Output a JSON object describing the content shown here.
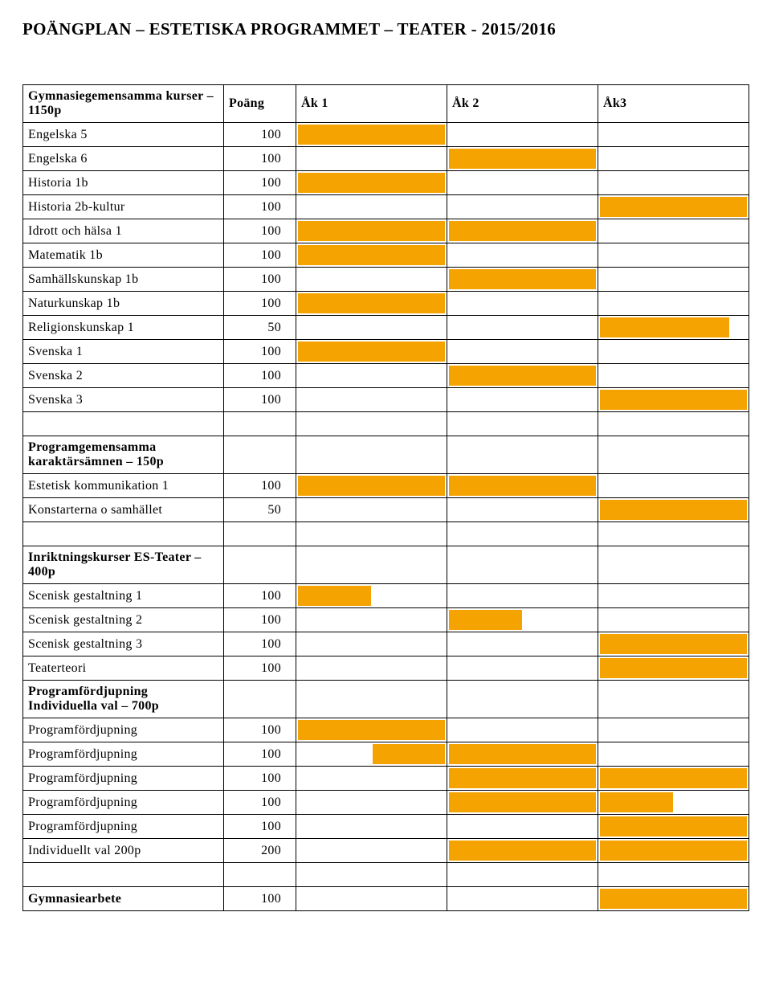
{
  "title": "POÄNGPLAN – ESTETISKA PROGRAMMET – TEATER - 2015/2016",
  "colors": {
    "fill": "#f5a300",
    "border": "#000000",
    "bg": "#ffffff"
  },
  "headers": {
    "section1": "Gymnasiegemensamma kurser – 1150p",
    "points": "Poäng",
    "y1": "Åk 1",
    "y2": "Åk 2",
    "y3": "Åk3",
    "section2": "Programgemensamma karaktärsämnen – 150p",
    "section3": "Inriktningskurser ES-Teater – 400p",
    "section4": "Programfördjupning Individuella val – 700p",
    "section5": "Gymnasiearbete"
  },
  "rows": [
    {
      "label": "Engelska 5",
      "pts": "100",
      "c": [
        "full",
        "",
        ""
      ]
    },
    {
      "label": "Engelska 6",
      "pts": "100",
      "c": [
        "",
        "full",
        ""
      ]
    },
    {
      "label": "Historia 1b",
      "pts": "100",
      "c": [
        "full",
        "",
        ""
      ]
    },
    {
      "label": "Historia 2b-kultur",
      "pts": "100",
      "c": [
        "",
        "",
        "full"
      ]
    },
    {
      "label": "Idrott och hälsa 1",
      "pts": "100",
      "c": [
        "full",
        "full",
        ""
      ]
    },
    {
      "label": "Matematik 1b",
      "pts": "100",
      "c": [
        "full",
        "",
        ""
      ]
    },
    {
      "label": "Samhällskunskap 1b",
      "pts": "100",
      "c": [
        "",
        "full",
        ""
      ]
    },
    {
      "label": "Naturkunskap 1b",
      "pts": "100",
      "c": [
        "full",
        "",
        ""
      ]
    },
    {
      "label": "Religionskunskap 1",
      "pts": "50",
      "c": [
        "",
        "",
        "narrow"
      ]
    },
    {
      "label": "Svenska 1",
      "pts": "100",
      "c": [
        "full",
        "",
        ""
      ]
    },
    {
      "label": "Svenska 2",
      "pts": "100",
      "c": [
        "",
        "full",
        ""
      ]
    },
    {
      "label": "Svenska 3",
      "pts": "100",
      "c": [
        "",
        "",
        "full"
      ]
    }
  ],
  "rows2": [
    {
      "label": "Estetisk kommunikation 1",
      "pts": "100",
      "c": [
        "full",
        "full",
        ""
      ]
    },
    {
      "label": "Konstarterna o samhället",
      "pts": "50",
      "c": [
        "",
        "",
        "full"
      ]
    }
  ],
  "rows3": [
    {
      "label": "Scenisk gestaltning 1",
      "pts": "100",
      "c": [
        "half-l",
        "",
        ""
      ]
    },
    {
      "label": "Scenisk gestaltning 2",
      "pts": "100",
      "c": [
        "",
        "half-l",
        ""
      ]
    },
    {
      "label": "Scenisk gestaltning 3",
      "pts": "100",
      "c": [
        "",
        "",
        "full"
      ]
    },
    {
      "label": "Teaterteori",
      "pts": "100",
      "c": [
        "",
        "",
        "full"
      ]
    }
  ],
  "rows4": [
    {
      "label": "Programfördjupning",
      "pts": "100",
      "c": [
        "full",
        "",
        ""
      ]
    },
    {
      "label": "Programfördjupning",
      "pts": "100",
      "c": [
        "half-r",
        "full",
        ""
      ]
    },
    {
      "label": "Programfördjupning",
      "pts": "100",
      "c": [
        "",
        "full",
        "full"
      ]
    },
    {
      "label": "Programfördjupning",
      "pts": "100",
      "c": [
        "",
        "full",
        "half-l"
      ]
    },
    {
      "label": "Programfördjupning",
      "pts": "100",
      "c": [
        "",
        "",
        "full"
      ]
    },
    {
      "label": "Individuellt val 200p",
      "pts": "200",
      "c": [
        "",
        "full",
        "full"
      ]
    }
  ],
  "rows5": [
    {
      "label": "",
      "pts": "100",
      "c": [
        "",
        "",
        "full"
      ]
    }
  ]
}
